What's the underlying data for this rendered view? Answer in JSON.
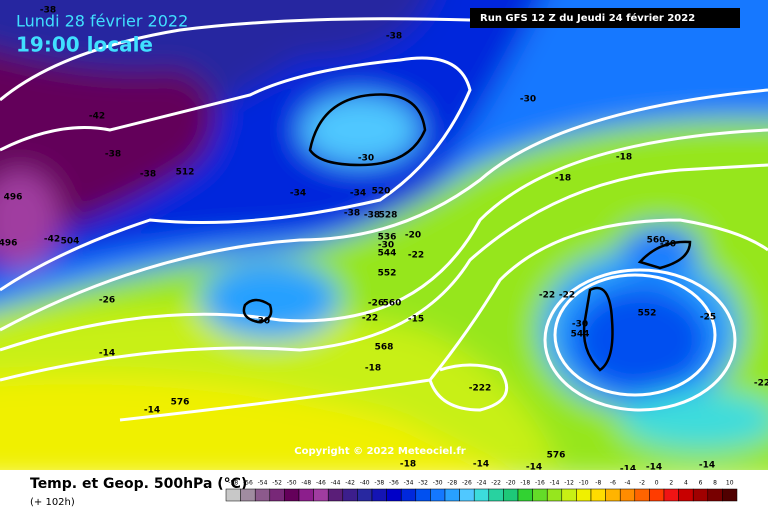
{
  "header": {
    "date": "Lundi 28 février 2022",
    "time": "19:00 locale",
    "run": "Run GFS 12 Z du Jeudi 24 février 2022"
  },
  "map": {
    "contour_labels": [
      "-38",
      "-38",
      "-42",
      "-38",
      "-38",
      "512",
      "496",
      "-42",
      "504",
      "496",
      "-30",
      "-34",
      "-34",
      "520",
      "-38",
      "-38",
      "528",
      "-30",
      "-18",
      "-18",
      "536",
      "-20",
      "-30",
      "544",
      "-22",
      "552",
      "-26",
      "-26",
      "560",
      "-22",
      "-15",
      "-30",
      "-22",
      "-22",
      "560",
      "-30",
      "552",
      "-25",
      "-30",
      "544",
      "568",
      "-14",
      "-18",
      "-222",
      "576",
      "-14",
      "576",
      "-18",
      "-14",
      "-14",
      "-14",
      "-14",
      "-14",
      "-22"
    ],
    "copyright": "Copyright © 2022 Meteociel.fr"
  },
  "footer": {
    "title": "Temp. et Geop. 500hPa (°C)",
    "lead": "(+ 102h)"
  },
  "legend": {
    "values": [
      "-58",
      "-56",
      "-54",
      "-52",
      "-50",
      "-48",
      "-46",
      "-44",
      "-42",
      "-40",
      "-38",
      "-36",
      "-34",
      "-32",
      "-30",
      "-28",
      "-26",
      "-24",
      "-22",
      "-20",
      "-18",
      "-16",
      "-14",
      "-12",
      "-10",
      "-8",
      "-6",
      "-4",
      "-2",
      "0",
      "2",
      "4",
      "6",
      "8",
      "10"
    ],
    "colors": [
      "#c8c8c8",
      "#a08ca0",
      "#8c5a8c",
      "#782878",
      "#64005a",
      "#8c1e8c",
      "#a03ca0",
      "#5a1e78",
      "#3c1e8c",
      "#2828a0",
      "#1414b4",
      "#0000c8",
      "#0028dc",
      "#0050f0",
      "#1478ff",
      "#28a0ff",
      "#50c8ff",
      "#3cdcdc",
      "#28d2a0",
      "#1ec878",
      "#32d232",
      "#64dc28",
      "#96e61e",
      "#c8f014",
      "#f0f000",
      "#ffdc00",
      "#ffb400",
      "#ff8c00",
      "#ff6400",
      "#ff3c00",
      "#f01414",
      "#c80000",
      "#a00000",
      "#780000",
      "#500000"
    ]
  }
}
